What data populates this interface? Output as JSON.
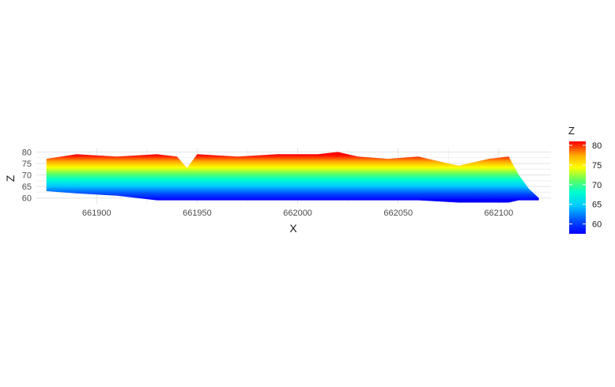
{
  "chart_data": {
    "type": "scatter",
    "title": "",
    "xlabel": "X",
    "ylabel": "Z",
    "x_ticks": [
      "661900",
      "661950",
      "662000",
      "662050",
      "662100"
    ],
    "y_ticks": [
      "60",
      "65",
      "70",
      "75",
      "80"
    ],
    "xlim": [
      661870,
      662126
    ],
    "ylim": [
      57.5,
      81.5
    ],
    "grid": true,
    "legend": {
      "title": "Z",
      "position": "right",
      "ticks": [
        "60",
        "65",
        "70",
        "75",
        "80"
      ],
      "range": [
        57.5,
        81
      ]
    },
    "colorscale": [
      "#0000ff",
      "#0055ff",
      "#00c8ff",
      "#00ffd0",
      "#60ff60",
      "#ffff00",
      "#ffaa00",
      "#ff3300",
      "#ff0000"
    ],
    "profile": {
      "x": [
        661875,
        661890,
        661910,
        661930,
        661940,
        661945,
        661950,
        661970,
        661990,
        662010,
        662020,
        662030,
        662045,
        662060,
        662080,
        662095,
        662105,
        662110,
        662115,
        662120
      ],
      "top_z": [
        77,
        79,
        78,
        79,
        78,
        73,
        79,
        78,
        79,
        79,
        80,
        78,
        77,
        78,
        74,
        77,
        78,
        70,
        64,
        60
      ],
      "bottom_z": [
        63,
        62,
        61,
        59,
        59,
        59,
        59,
        59,
        59,
        59,
        59,
        59,
        59,
        59,
        58,
        58,
        58,
        59,
        59,
        59
      ]
    }
  }
}
